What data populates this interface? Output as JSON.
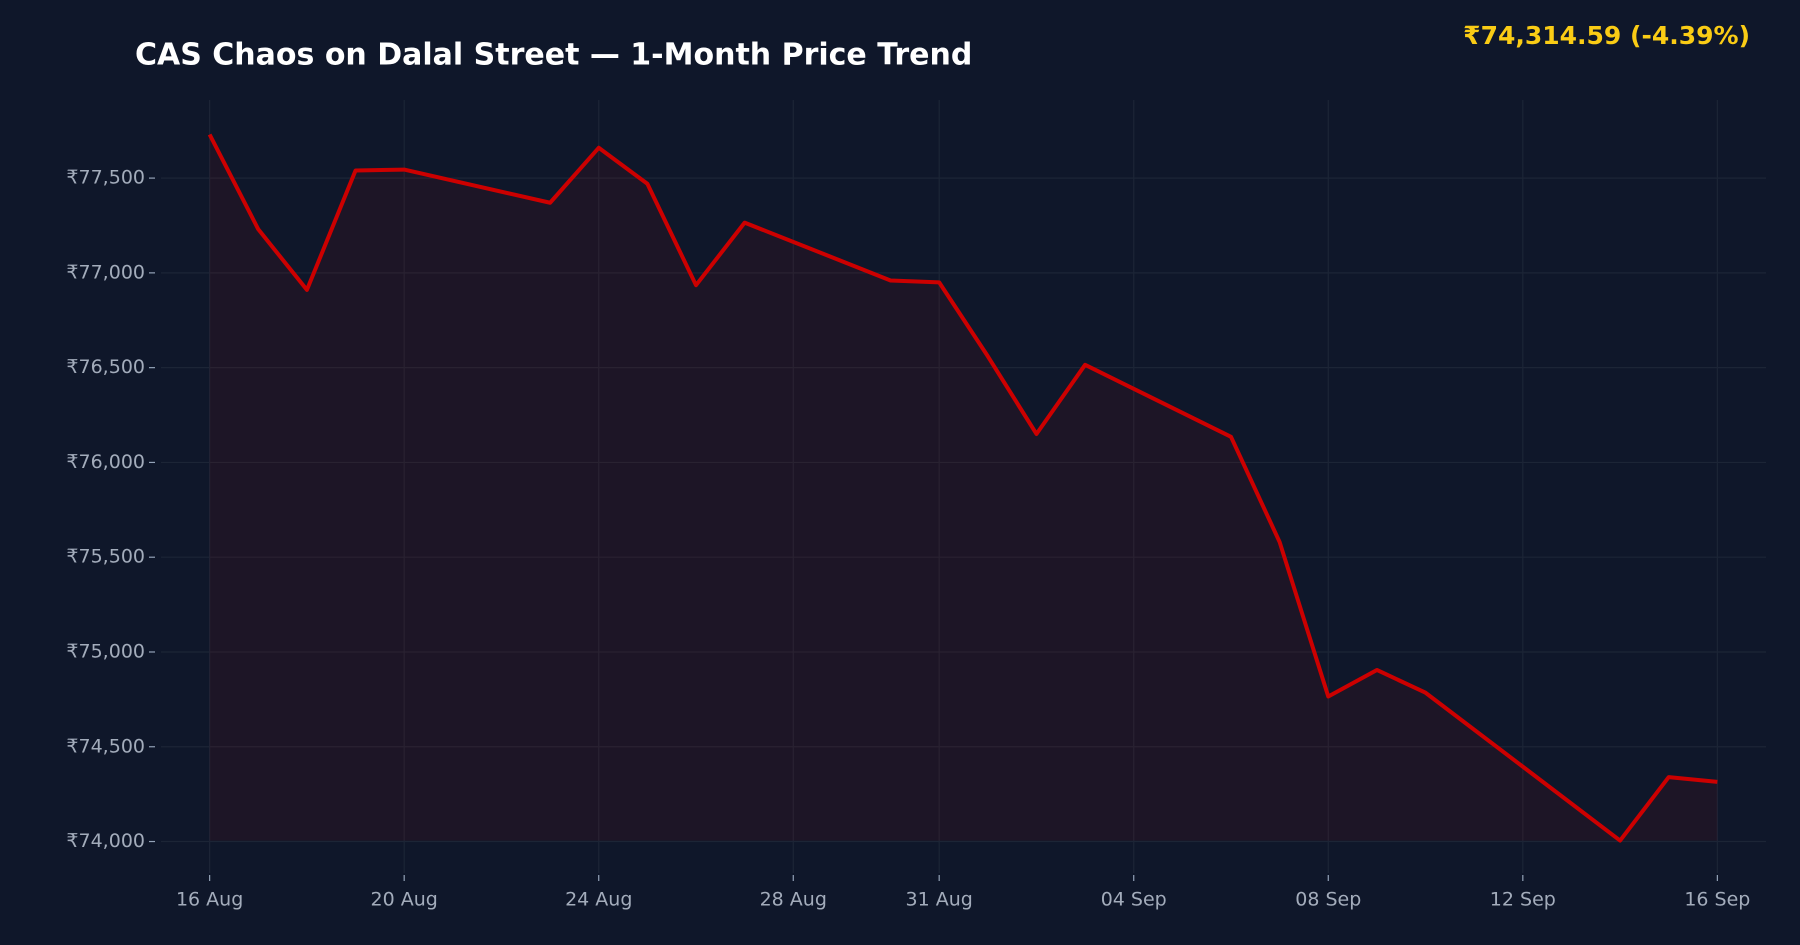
{
  "chart_data": {
    "type": "line",
    "title": "CAS Chaos on Dalal Street — 1-Month Price Trend",
    "annotation": "₹74,314.59  (-4.39%)",
    "x": [
      "08-16",
      "08-17",
      "08-18",
      "08-19",
      "08-20",
      "08-23",
      "08-24",
      "08-25",
      "08-26",
      "08-27",
      "08-30",
      "08-31",
      "09-01",
      "09-02",
      "09-03",
      "09-06",
      "09-07",
      "09-08",
      "09-09",
      "09-10",
      "09-14",
      "09-15",
      "09-16"
    ],
    "series": [
      {
        "name": "Price",
        "color": "#cc0000",
        "values": [
          77730,
          77230,
          76910,
          77540,
          77545,
          77370,
          77660,
          77470,
          76935,
          77265,
          76960,
          76950,
          76560,
          76150,
          76515,
          76135,
          75580,
          74765,
          74905,
          74785,
          74005,
          74340,
          74314.59
        ]
      }
    ],
    "xlim": [
      "08-15",
      "09-17"
    ],
    "xticks": [
      {
        "value": "08-16",
        "label": "16 Aug"
      },
      {
        "value": "08-20",
        "label": "20 Aug"
      },
      {
        "value": "08-24",
        "label": "24 Aug"
      },
      {
        "value": "08-28",
        "label": "28 Aug"
      },
      {
        "value": "08-31",
        "label": "31 Aug"
      },
      {
        "value": "09-04",
        "label": "04 Sep"
      },
      {
        "value": "09-08",
        "label": "08 Sep"
      },
      {
        "value": "09-12",
        "label": "12 Sep"
      },
      {
        "value": "09-16",
        "label": "16 Sep"
      }
    ],
    "ylim": [
      73834,
      77912
    ],
    "yticks": [
      {
        "value": 74000,
        "label": "₹74,000"
      },
      {
        "value": 74500,
        "label": "₹74,500"
      },
      {
        "value": 75000,
        "label": "₹75,000"
      },
      {
        "value": 75500,
        "label": "₹75,500"
      },
      {
        "value": 76000,
        "label": "₹76,000"
      },
      {
        "value": 76500,
        "label": "₹76,500"
      },
      {
        "value": 77000,
        "label": "₹77,000"
      },
      {
        "value": 77500,
        "label": "₹77,500"
      }
    ],
    "grid": true
  }
}
